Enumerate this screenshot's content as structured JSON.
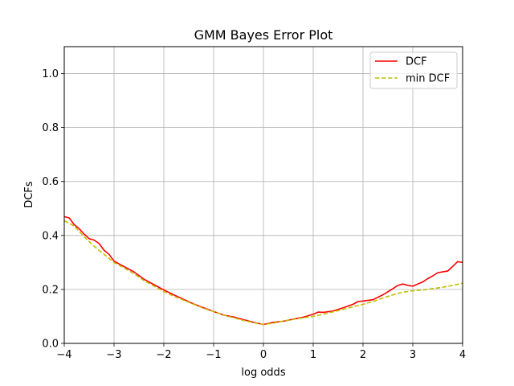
{
  "chart_data": {
    "type": "line",
    "title": "GMM Bayes Error Plot",
    "xlabel": "log odds",
    "ylabel": "DCFs",
    "xlim": [
      -4,
      4
    ],
    "ylim": [
      0,
      1.1
    ],
    "xticks": [
      -4,
      -3,
      -2,
      -1,
      0,
      1,
      2,
      3,
      4
    ],
    "xtick_labels": [
      "−4",
      "−3",
      "−2",
      "−1",
      "0",
      "1",
      "2",
      "3",
      "4"
    ],
    "yticks": [
      0,
      0.2,
      0.4,
      0.6,
      0.8,
      1.0
    ],
    "ytick_labels": [
      "0.0",
      "0.2",
      "0.4",
      "0.6",
      "0.8",
      "1.0"
    ],
    "grid": true,
    "legend_position": "top-right",
    "series": [
      {
        "name": "DCF",
        "color": "#ff0000",
        "style": "solid",
        "x": [
          -4.0,
          -3.9,
          -3.8,
          -3.7,
          -3.6,
          -3.5,
          -3.4,
          -3.3,
          -3.2,
          -3.1,
          -3.0,
          -2.8,
          -2.6,
          -2.4,
          -2.2,
          -2.0,
          -1.8,
          -1.6,
          -1.4,
          -1.2,
          -1.0,
          -0.8,
          -0.6,
          -0.4,
          -0.2,
          0.0,
          0.2,
          0.4,
          0.6,
          0.8,
          1.0,
          1.1,
          1.2,
          1.4,
          1.6,
          1.8,
          1.9,
          2.0,
          2.2,
          2.4,
          2.6,
          2.7,
          2.8,
          2.9,
          3.0,
          3.1,
          3.2,
          3.3,
          3.4,
          3.5,
          3.6,
          3.7,
          3.8,
          3.9,
          4.0
        ],
        "y": [
          0.47,
          0.465,
          0.44,
          0.425,
          0.405,
          0.388,
          0.383,
          0.37,
          0.345,
          0.33,
          0.305,
          0.285,
          0.265,
          0.238,
          0.218,
          0.198,
          0.18,
          0.163,
          0.146,
          0.132,
          0.118,
          0.105,
          0.098,
          0.088,
          0.078,
          0.07,
          0.078,
          0.082,
          0.09,
          0.097,
          0.108,
          0.116,
          0.115,
          0.12,
          0.132,
          0.145,
          0.155,
          0.157,
          0.162,
          0.18,
          0.203,
          0.215,
          0.22,
          0.215,
          0.212,
          0.22,
          0.228,
          0.24,
          0.25,
          0.262,
          0.265,
          0.268,
          0.285,
          0.303,
          0.3
        ]
      },
      {
        "name": "min DCF",
        "color": "#bfbf00",
        "style": "dashed",
        "x": [
          -4.0,
          -3.8,
          -3.6,
          -3.4,
          -3.2,
          -3.0,
          -2.8,
          -2.6,
          -2.4,
          -2.2,
          -2.0,
          -1.8,
          -1.6,
          -1.4,
          -1.2,
          -1.0,
          -0.8,
          -0.6,
          -0.4,
          -0.2,
          0.0,
          0.2,
          0.4,
          0.6,
          0.8,
          1.0,
          1.2,
          1.4,
          1.6,
          1.8,
          2.0,
          2.2,
          2.4,
          2.6,
          2.8,
          3.0,
          3.2,
          3.4,
          3.6,
          3.8,
          4.0
        ],
        "y": [
          0.455,
          0.435,
          0.395,
          0.36,
          0.33,
          0.3,
          0.28,
          0.258,
          0.233,
          0.213,
          0.192,
          0.175,
          0.16,
          0.145,
          0.13,
          0.118,
          0.105,
          0.095,
          0.085,
          0.077,
          0.07,
          0.075,
          0.083,
          0.089,
          0.095,
          0.1,
          0.108,
          0.117,
          0.126,
          0.136,
          0.145,
          0.155,
          0.168,
          0.18,
          0.19,
          0.195,
          0.198,
          0.203,
          0.208,
          0.215,
          0.223
        ]
      }
    ]
  }
}
